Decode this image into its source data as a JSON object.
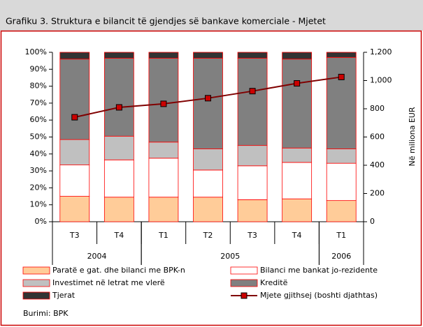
{
  "chart_data": {
    "type": "stacked_bar_line",
    "title": "Grafiku 3.  Struktura e bilancit të gjendjes së bankave komerciale - Mjetet",
    "categories": [
      "T3",
      "T4",
      "T1",
      "T2",
      "T3",
      "T4",
      "T1"
    ],
    "x_groups": [
      {
        "label": "2004",
        "count": 2
      },
      {
        "label": "2005",
        "count": 4
      },
      {
        "label": "2006",
        "count": 1
      }
    ],
    "series": [
      {
        "name": "Paratë e gat. dhe bilanci me BPK-n",
        "color": "#ffcc99",
        "values": [
          15,
          14.5,
          14.5,
          14.5,
          13,
          13.5,
          12.5
        ]
      },
      {
        "name": "Bilanci me bankat jo-rezidente",
        "color": "#ffffff",
        "values": [
          18.5,
          22,
          23,
          16,
          20,
          21.5,
          22
        ]
      },
      {
        "name": "Investimet në letrat me vlerë",
        "color": "#c0c0c0",
        "values": [
          15,
          14,
          9.5,
          12.5,
          12,
          8.5,
          8.5
        ]
      },
      {
        "name": "Kreditë",
        "color": "#808080",
        "values": [
          47.5,
          46,
          49.5,
          53.5,
          51.5,
          52.5,
          54
        ]
      },
      {
        "name": "Tjerat",
        "color": "#333333",
        "values": [
          4,
          3.5,
          3.5,
          3.5,
          3.5,
          4,
          3
        ]
      },
      {
        "name": "Mjete gjithsej (boshti djathtas)",
        "color": "#800000",
        "axis": "y2",
        "values": [
          740,
          810,
          835,
          875,
          925,
          980,
          1025
        ]
      }
    ],
    "ylim": [
      0,
      100
    ],
    "yticks": [
      {
        "value": 0,
        "label": "0%"
      },
      {
        "value": 10,
        "label": "10%"
      },
      {
        "value": 20,
        "label": "20%"
      },
      {
        "value": 30,
        "label": "30%"
      },
      {
        "value": 40,
        "label": "40%"
      },
      {
        "value": 50,
        "label": "50%"
      },
      {
        "value": 60,
        "label": "60%"
      },
      {
        "value": 70,
        "label": "70%"
      },
      {
        "value": 80,
        "label": "80%"
      },
      {
        "value": 90,
        "label": "90%"
      },
      {
        "value": 100,
        "label": "100%"
      }
    ],
    "y2lim": [
      0,
      1200
    ],
    "y2ticks": [
      0,
      200,
      400,
      600,
      800,
      {
        "value": 1000,
        "label": "1,000"
      },
      {
        "value": 1200,
        "label": "1,200"
      }
    ],
    "y2label": "Në miliona  EUR",
    "source": "Burimi: BPK"
  }
}
